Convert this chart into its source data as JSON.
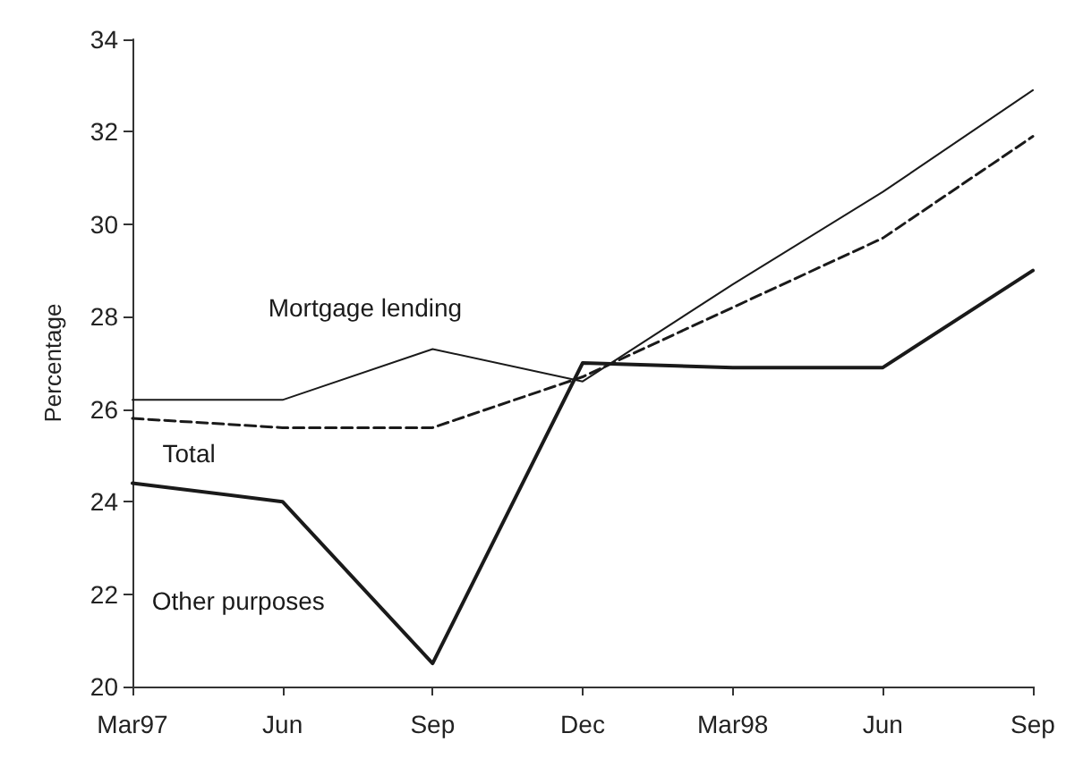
{
  "chart_data": {
    "type": "line",
    "ylabel": "Percentage",
    "categories": [
      "Mar97",
      "Jun",
      "Sep",
      "Dec",
      "Mar98",
      "Jun",
      "Sep"
    ],
    "series": [
      {
        "name": "Mortgage lending",
        "color": "#1a1a1a",
        "line_style": "solid",
        "values": [
          26.2,
          26.2,
          27.3,
          26.6,
          28.7,
          30.7,
          32.9
        ]
      },
      {
        "name": "Total",
        "color": "#1a1a1a",
        "line_style": "dashed",
        "values": [
          25.8,
          25.6,
          25.6,
          26.7,
          28.2,
          29.7,
          31.9
        ]
      },
      {
        "name": "Other purposes",
        "color": "#1a1a1a",
        "line_style": "solid",
        "values": [
          24.4,
          24.0,
          20.5,
          27.0,
          26.9,
          26.9,
          29.0
        ]
      }
    ],
    "ylim": [
      20,
      34
    ],
    "yticks": [
      20,
      22,
      24,
      26,
      28,
      30,
      32,
      34
    ],
    "grid": false,
    "marker": "none"
  }
}
